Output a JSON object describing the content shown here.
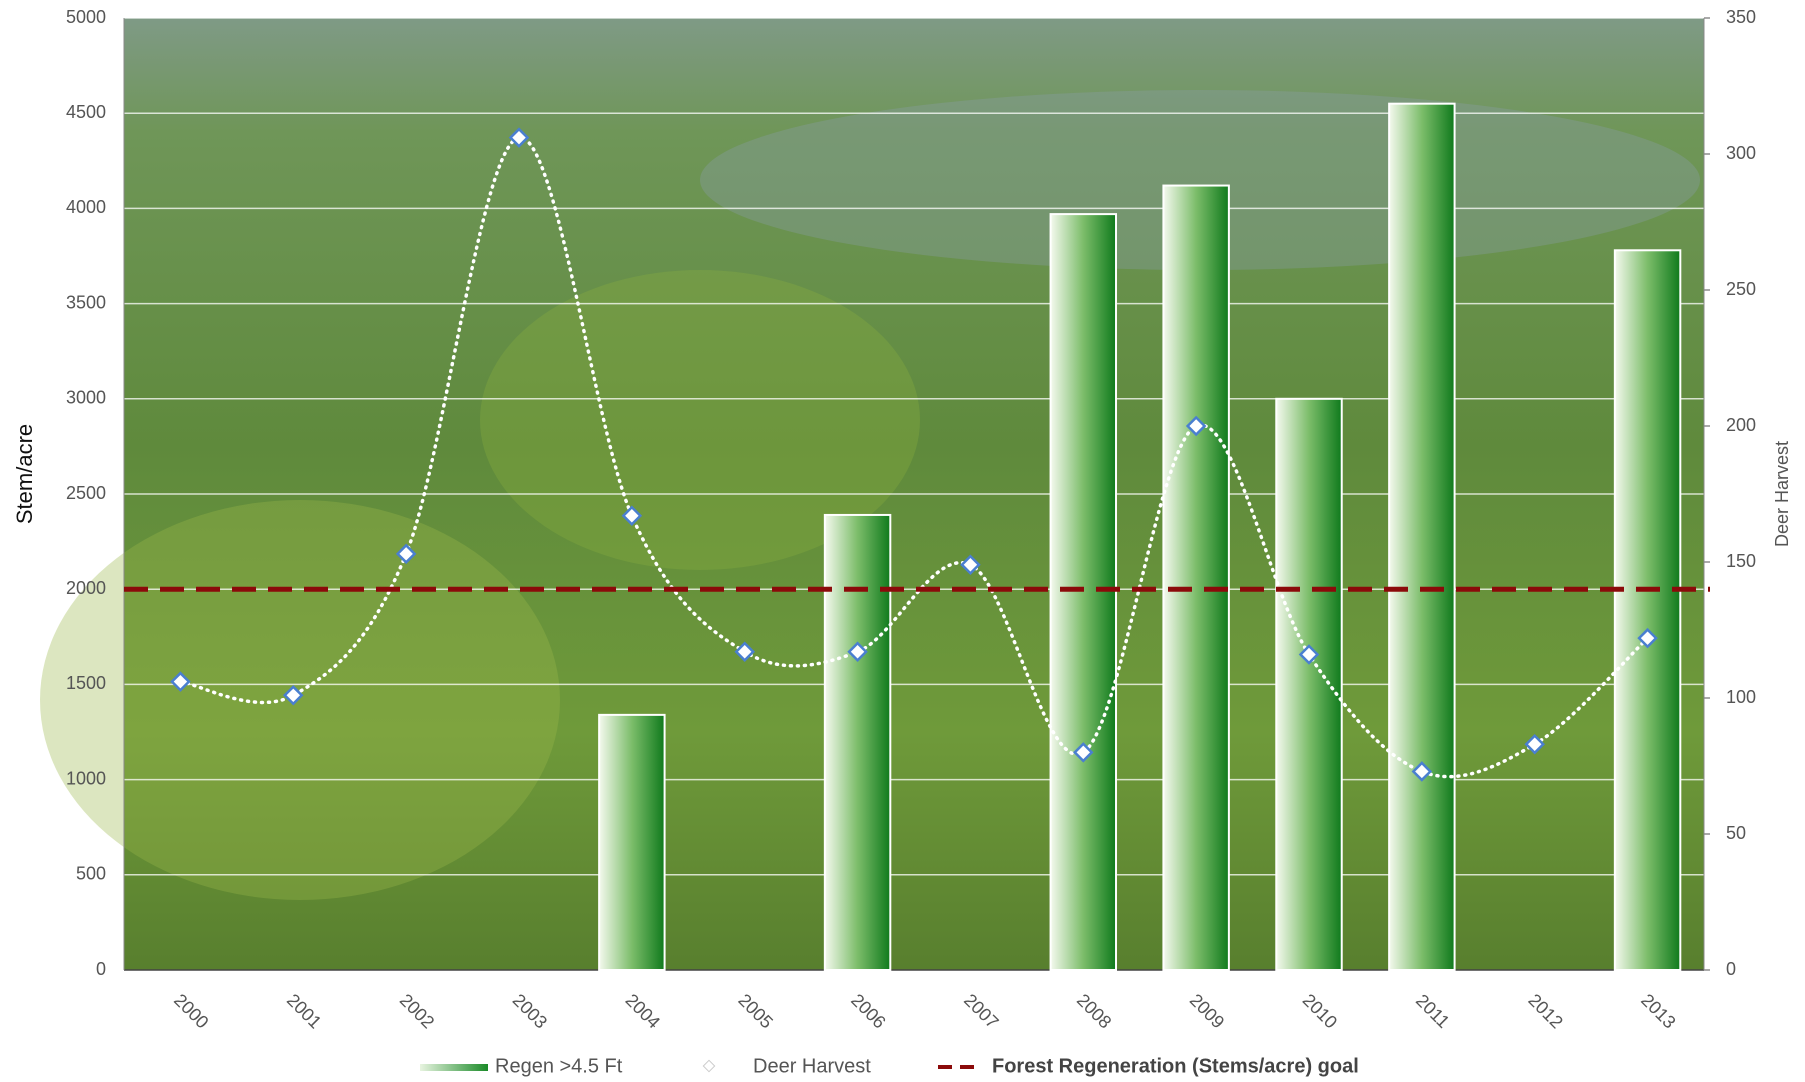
{
  "chart_data": {
    "type": "bar",
    "categories": [
      "2000",
      "2001",
      "2002",
      "2003",
      "2004",
      "2005",
      "2006",
      "2007",
      "2008",
      "2009",
      "2010",
      "2011",
      "2012",
      "2013"
    ],
    "y_label": "Stem/acre",
    "y2_label": "Deer Harvest",
    "ylim": [
      0,
      5000
    ],
    "yticks": [
      0,
      500,
      1000,
      1500,
      2000,
      2500,
      3000,
      3500,
      4000,
      4500,
      5000
    ],
    "y2lim": [
      0,
      350
    ],
    "y2ticks": [
      0,
      50,
      100,
      150,
      200,
      250,
      300,
      350
    ],
    "grid": true,
    "series": [
      {
        "name": "Regen >4.5 Ft",
        "type": "bar",
        "color": "#2e8b2e",
        "values": [
          null,
          null,
          null,
          null,
          1340,
          null,
          2390,
          null,
          3970,
          4120,
          3000,
          4550,
          null,
          3780
        ]
      },
      {
        "name": "Deer Harvest",
        "type": "line",
        "axis": "y2",
        "color": "#ffffff",
        "marker_color": "#4a7fd0",
        "values": [
          106,
          101,
          153,
          306,
          167,
          117,
          117,
          149,
          80,
          200,
          116,
          73,
          83,
          122
        ]
      }
    ],
    "goal": {
      "name": "Forest Regeneration (Stems/acre) goal",
      "value": 2000,
      "color": "#8b0a0a"
    }
  }
}
